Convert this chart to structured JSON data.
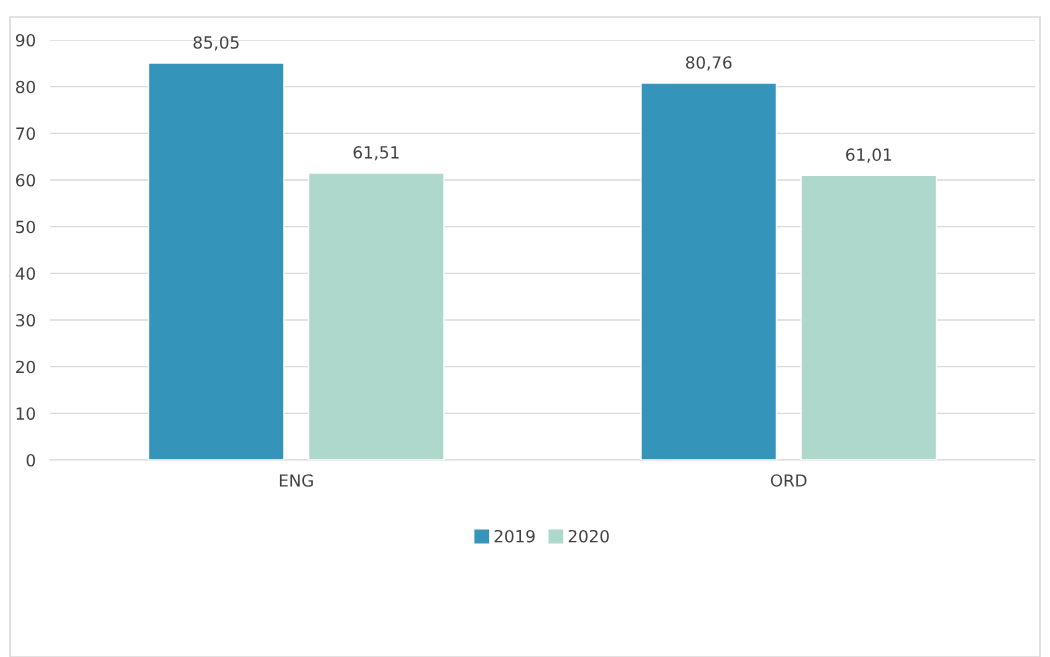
{
  "chart_data": {
    "type": "bar",
    "categories": [
      "ENG",
      "ORD"
    ],
    "series": [
      {
        "name": "2019",
        "color": "#3494ba",
        "values": [
          85.05,
          80.76
        ],
        "value_labels": [
          "85,05",
          "80,76"
        ]
      },
      {
        "name": "2020",
        "color": "#aed8cc",
        "values": [
          61.51,
          61.01
        ],
        "value_labels": [
          "61,51",
          "61,01"
        ]
      }
    ],
    "ylim": [
      0,
      90
    ],
    "yticks": [
      0,
      10,
      20,
      30,
      40,
      50,
      60,
      70,
      80,
      90
    ],
    "grid": "y",
    "legend": "bottom"
  }
}
